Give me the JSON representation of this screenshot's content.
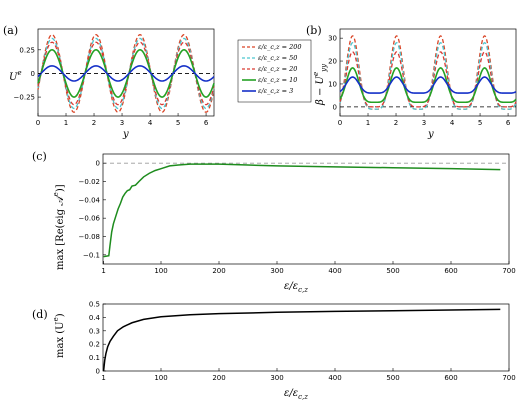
{
  "panels": {
    "a": {
      "label": "(a)",
      "ylabel": "U^e",
      "xlabel": "y"
    },
    "b": {
      "label": "(b)",
      "ylabel": "β − U^e_yy",
      "xlabel": "y"
    },
    "c": {
      "label": "(c)",
      "ylabel": "max [Re(eig 𝒜^e)]",
      "xlabel": "ε/ε_c,z"
    },
    "d": {
      "label": "(d)",
      "ylabel": "max (U^e)",
      "xlabel": "ε/ε_c,z"
    }
  },
  "chart_data": [
    {
      "panel": "a",
      "type": "line",
      "xlim": [
        0,
        6.283
      ],
      "ylim": [
        -0.45,
        0.47
      ],
      "xticks": [
        0,
        1,
        2,
        3,
        4,
        5,
        6
      ],
      "yticks": [
        -0.25,
        0,
        0.25
      ],
      "ytick_labels": [
        "−0.25",
        "0",
        "0.25"
      ],
      "reference_line": {
        "y": 0,
        "style": "dashed",
        "color": "#000000"
      },
      "wavenumber": 4,
      "series": [
        {
          "name": "ε/ε_c,z = 200",
          "color": "#d94526",
          "dash": true,
          "amplitude": 0.41
        },
        {
          "name": "ε/ε_c,z = 50",
          "color": "#4cc6cf",
          "dash": true,
          "amplitude": 0.37
        },
        {
          "name": "ε/ε_c,z = 20",
          "color": "#d93a32",
          "dash": true,
          "amplitude": 0.33
        },
        {
          "name": "ε/ε_c,z = 10",
          "color": "#24a124",
          "dash": false,
          "amplitude": 0.25
        },
        {
          "name": "ε/ε_c,z = 3",
          "color": "#1530c8",
          "dash": false,
          "amplitude": 0.08
        }
      ]
    },
    {
      "panel": "b",
      "type": "line",
      "xlim": [
        0,
        6.283
      ],
      "ylim": [
        -4,
        34
      ],
      "xticks": [
        0,
        1,
        2,
        3,
        4,
        5,
        6
      ],
      "yticks": [
        0,
        10,
        20,
        30
      ],
      "reference_line": {
        "y": 0,
        "style": "dashed",
        "color": "#000000"
      },
      "wavenumber": 4,
      "beta": 1,
      "series": [
        {
          "name": "ε/ε_c,z = 200",
          "color": "#d94526",
          "dash": true,
          "min": -1,
          "max": 31
        },
        {
          "name": "ε/ε_c,z = 50",
          "color": "#4cc6cf",
          "dash": true,
          "min": -1,
          "max": 28
        },
        {
          "name": "ε/ε_c,z = 20",
          "color": "#d93a32",
          "dash": true,
          "min": 0,
          "max": 24
        },
        {
          "name": "ε/ε_c,z = 10",
          "color": "#24a124",
          "dash": false,
          "min": 2,
          "max": 17
        },
        {
          "name": "ε/ε_c,z = 3",
          "color": "#1530c8",
          "dash": false,
          "min": 6,
          "max": 13
        }
      ]
    },
    {
      "panel": "c",
      "type": "line",
      "xlim": [
        0,
        700
      ],
      "ylim": [
        -0.11,
        0.01
      ],
      "xticks": [
        1,
        100,
        200,
        300,
        400,
        500,
        600,
        700
      ],
      "yticks": [
        0,
        -0.02,
        -0.04,
        -0.06,
        -0.08,
        -0.1
      ],
      "ytick_labels": [
        "0",
        "−0.02",
        "−0.04",
        "−0.06",
        "−0.08",
        "−0.1"
      ],
      "reference_line": {
        "y": 0,
        "style": "dashed",
        "color": "#9a9a9a"
      },
      "series": [
        {
          "color": "#1e8c1e",
          "x": [
            1,
            10,
            12,
            15,
            18,
            22,
            26,
            30,
            34,
            38,
            42,
            46,
            50,
            56,
            62,
            70,
            80,
            90,
            100,
            115,
            130,
            150,
            175,
            200,
            250,
            300,
            400,
            500,
            600,
            685
          ],
          "y": [
            -0.102,
            -0.101,
            -0.09,
            -0.075,
            -0.066,
            -0.058,
            -0.05,
            -0.044,
            -0.037,
            -0.033,
            -0.03,
            -0.029,
            -0.025,
            -0.024,
            -0.02,
            -0.015,
            -0.011,
            -0.008,
            -0.006,
            -0.003,
            -0.002,
            -0.001,
            -0.001,
            -0.001,
            -0.002,
            -0.003,
            -0.004,
            -0.005,
            -0.006,
            -0.007
          ]
        }
      ]
    },
    {
      "panel": "d",
      "type": "line",
      "xlim": [
        0,
        700
      ],
      "ylim": [
        0,
        0.5
      ],
      "xticks": [
        1,
        100,
        200,
        300,
        400,
        500,
        600,
        700
      ],
      "yticks": [
        0,
        0.1,
        0.2,
        0.3,
        0.4,
        0.5
      ],
      "series": [
        {
          "color": "#000000",
          "x": [
            1,
            3,
            5,
            8,
            12,
            18,
            25,
            35,
            50,
            70,
            100,
            150,
            200,
            300,
            400,
            500,
            600,
            685
          ],
          "y": [
            0.0,
            0.08,
            0.13,
            0.18,
            0.22,
            0.26,
            0.3,
            0.33,
            0.36,
            0.385,
            0.405,
            0.42,
            0.428,
            0.438,
            0.445,
            0.45,
            0.455,
            0.46
          ]
        }
      ]
    }
  ]
}
